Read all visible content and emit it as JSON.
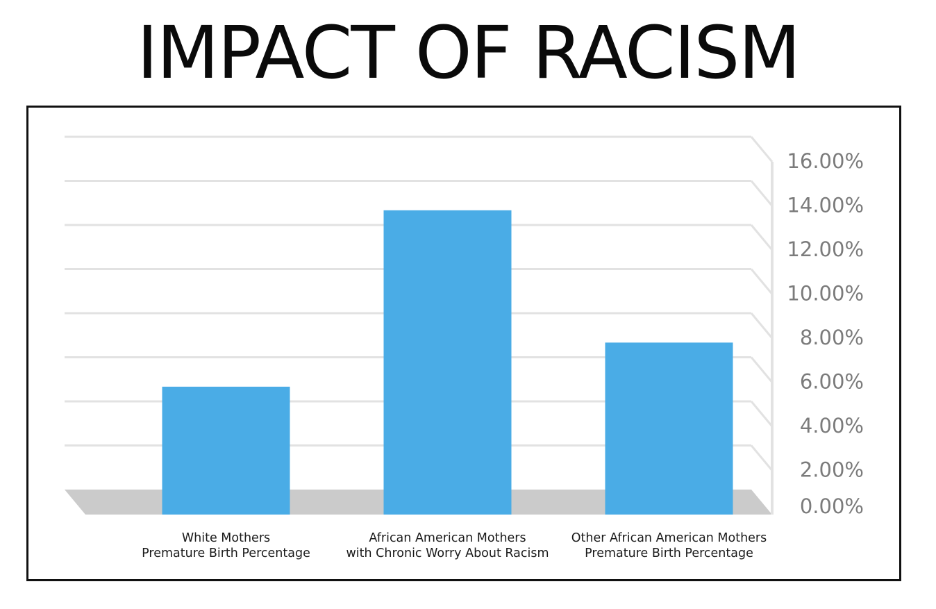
{
  "page": {
    "title": "IMPACT OF RACISM"
  },
  "chart_data": {
    "type": "bar",
    "title": "IMPACT OF RACISM",
    "xlabel": "",
    "ylabel": "",
    "categories": [
      [
        "White Mothers",
        "Premature Birth Percentage"
      ],
      [
        "African American Mothers",
        "with Chronic Worry About Racism"
      ],
      [
        "Other African American Mothers",
        "Premature Birth Percentage"
      ]
    ],
    "series": [
      {
        "values": [
          5.8,
          13.8,
          7.8
        ]
      }
    ],
    "value_unit": "%",
    "ylim": [
      0,
      16
    ],
    "y_ticks": [
      "0.00%",
      "2.00%",
      "4.00%",
      "6.00%",
      "8.00%",
      "10.00%",
      "12.00%",
      "14.00%",
      "16.00%"
    ],
    "y_axis_side": "right",
    "grid": true,
    "legend": "none",
    "style_3d_floor": true,
    "colors": {
      "bar": "#4aace6",
      "grid": "#e2e2e2",
      "floor": "#cbcbcb",
      "tick_text": "#7b7b7b"
    }
  }
}
